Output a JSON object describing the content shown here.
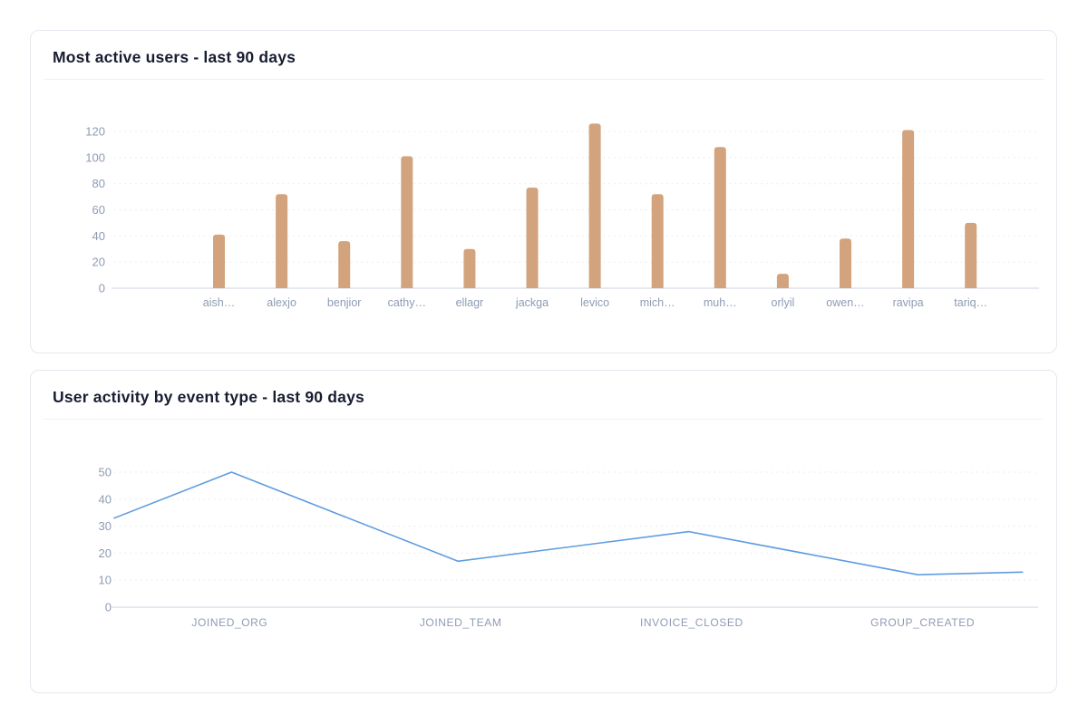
{
  "cards": [
    {
      "title": "Most active users - last 90 days"
    },
    {
      "title": "User activity by event type - last 90 days"
    }
  ],
  "colors": {
    "bar": "#d2a37c",
    "line": "#5f9ce0",
    "axis_label": "#8e9cb2",
    "grid": "#e9ecf2",
    "baseline": "#dde3ec",
    "title": "#181d31",
    "card_border": "#e4e7ee"
  },
  "chart_data": [
    {
      "type": "bar",
      "title": "Most active users - last 90 days",
      "categories": [
        "aish…",
        "alexjo",
        "benjior",
        "cathy…",
        "ellagr",
        "jackga",
        "levico",
        "mich…",
        "muh…",
        "orlyil",
        "owen…",
        "ravipa",
        "tariq…"
      ],
      "values": [
        41,
        72,
        36,
        101,
        30,
        77,
        126,
        72,
        108,
        11,
        38,
        121,
        50
      ],
      "xlabel": "",
      "ylabel": "",
      "y_ticks": [
        0,
        20,
        40,
        60,
        80,
        100,
        120
      ],
      "ylim": [
        0,
        130
      ],
      "grid": "horizontal-dotted",
      "legend": "none"
    },
    {
      "type": "line",
      "title": "User activity by event type - last 90 days",
      "categories": [
        "JOINED_ORG",
        "JOINED_TEAM",
        "INVOICE_CLOSED",
        "GROUP_CREATED"
      ],
      "values": [
        50,
        17,
        28,
        12
      ],
      "points": [
        {
          "x": 0.0,
          "value": 33
        },
        {
          "x": 0.127,
          "value": 50
        },
        {
          "x": 0.372,
          "value": 17
        },
        {
          "x": 0.622,
          "value": 28
        },
        {
          "x": 0.87,
          "value": 12
        },
        {
          "x": 0.983,
          "value": 13
        }
      ],
      "xlabel": "",
      "ylabel": "",
      "y_ticks": [
        0,
        10,
        20,
        30,
        40,
        50
      ],
      "ylim": [
        0,
        55
      ],
      "grid": "horizontal-dotted",
      "legend": "none"
    }
  ]
}
